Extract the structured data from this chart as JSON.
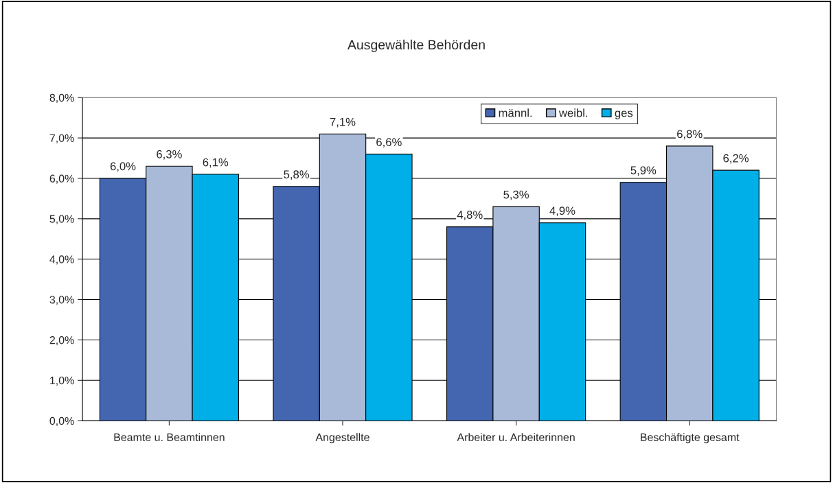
{
  "chart_data": {
    "type": "bar",
    "title": "Ausgewählte Behörden",
    "categories": [
      "Beamte u. Beamtinnen",
      "Angestellte",
      "Arbeiter u. Arbeiterinnen",
      "Beschäftigte gesamt"
    ],
    "series": [
      {
        "name": "männl.",
        "color": "#4466b0",
        "values": [
          6.0,
          5.8,
          4.8,
          5.9
        ],
        "value_labels": [
          "6,0%",
          "5,8%",
          "4,8%",
          "5,9%"
        ]
      },
      {
        "name": "weibl.",
        "color": "#a8bad8",
        "values": [
          6.3,
          7.1,
          5.3,
          6.8
        ],
        "value_labels": [
          "6,3%",
          "7,1%",
          "5,3%",
          "6,8%"
        ]
      },
      {
        "name": "ges",
        "color": "#00aee8",
        "values": [
          6.1,
          6.6,
          4.9,
          6.2
        ],
        "value_labels": [
          "6,1%",
          "6,6%",
          "4,9%",
          "6,2%"
        ]
      }
    ],
    "ylim": [
      0,
      8
    ],
    "yticks": [
      {
        "value": 0,
        "label": "0,0%"
      },
      {
        "value": 1,
        "label": "1,0%"
      },
      {
        "value": 2,
        "label": "2,0%"
      },
      {
        "value": 3,
        "label": "3,0%"
      },
      {
        "value": 4,
        "label": "4,0%"
      },
      {
        "value": 5,
        "label": "5,0%"
      },
      {
        "value": 6,
        "label": "6,0%"
      },
      {
        "value": 7,
        "label": "7,0%"
      },
      {
        "value": 8,
        "label": "8,0%"
      }
    ],
    "grid": "y",
    "legend": "top right"
  }
}
